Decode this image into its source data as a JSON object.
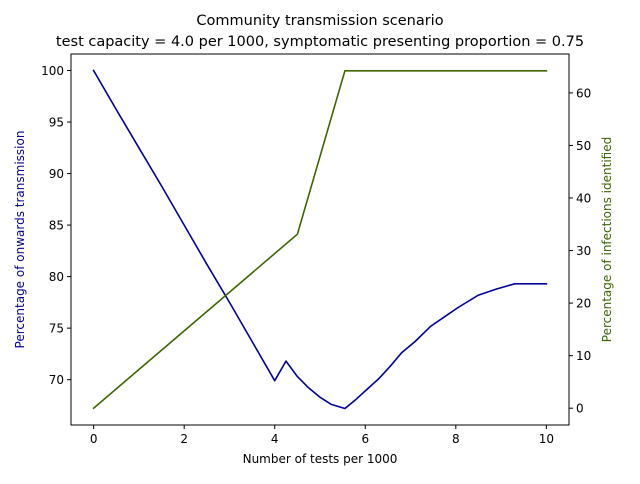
{
  "chart_data": {
    "type": "line",
    "title": "Community transmission scenario",
    "subtitle": "test capacity = 4.0 per 1000, symptomatic presenting proportion = 0.75",
    "xlabel": "Number of tests per 1000",
    "ylabel_left": "Percentage of onwards transmission",
    "ylabel_right": "Percentage of infections identified",
    "xlim": [
      -0.5,
      10.5
    ],
    "ylim_left": [
      65.6,
      101.6
    ],
    "ylim_right": [
      -3.2,
      67.4
    ],
    "xticks": [
      0,
      2,
      4,
      6,
      8,
      10
    ],
    "yticks_left": [
      70,
      75,
      80,
      85,
      90,
      95,
      100
    ],
    "yticks_right": [
      0,
      10,
      20,
      30,
      40,
      50,
      60
    ],
    "grid": false,
    "colors": {
      "left": "#00009a",
      "right": "#3d6500"
    },
    "series": [
      {
        "axis": "left",
        "color": "#00009a",
        "x": [
          0,
          0.5,
          1,
          1.5,
          2,
          2.5,
          3,
          3.5,
          4,
          4.25,
          4.5,
          4.75,
          5,
          5.25,
          5.55,
          5.8,
          6.05,
          6.3,
          6.55,
          6.8,
          7.1,
          7.45,
          7.75,
          8.05,
          8.5,
          8.9,
          9.3,
          10
        ],
        "y": [
          100,
          96.2,
          92.5,
          88.8,
          85.0,
          81.2,
          77.5,
          73.7,
          69.9,
          71.8,
          70.3,
          69.2,
          68.3,
          67.6,
          67.2,
          68.1,
          69.1,
          70.1,
          71.3,
          72.6,
          73.7,
          75.2,
          76.1,
          77.0,
          78.2,
          78.8,
          79.3,
          79.3
        ]
      },
      {
        "axis": "right",
        "color": "#3d6500",
        "x": [
          0,
          4.5,
          5.55,
          10
        ],
        "y": [
          0,
          33.1,
          64.2,
          64.2
        ]
      }
    ]
  }
}
